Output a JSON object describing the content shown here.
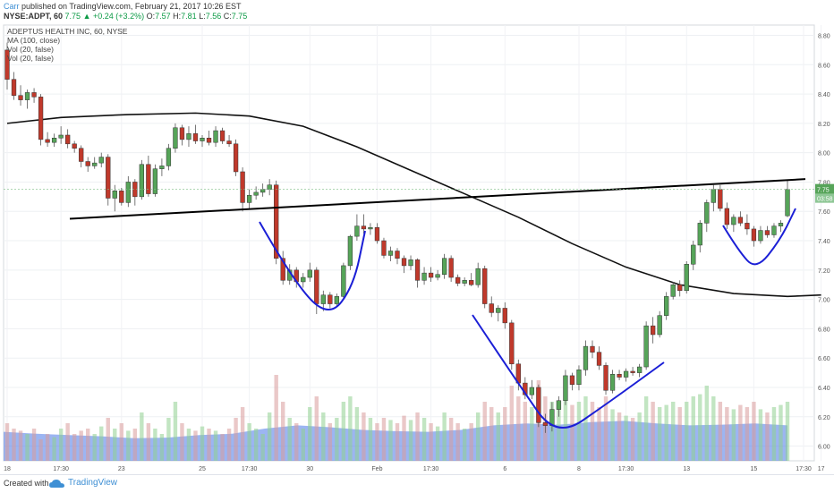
{
  "header": {
    "user": "Carr",
    "published": "published on TradingView.com, February 21, 2017 10:26 EST",
    "symbol": "NYSE:ADPT, 60",
    "last": "7.75",
    "change": "+0.24 (+3.2%)",
    "o_label": "O:",
    "o_value": "7.57",
    "h_label": "H:",
    "h_value": "7.81",
    "l_label": "L:",
    "l_value": "7.56",
    "c_label": "C:",
    "c_value": "7.75"
  },
  "panel": {
    "title": "ADEPTUS HEALTH INC, 60, NYSE",
    "indicators": [
      "MA (100, close)",
      "Vol (20, false)",
      "Vol (20, false)"
    ]
  },
  "price_scale": {
    "ticks": [
      "8.80",
      "8.60",
      "8.40",
      "8.20",
      "8.00",
      "7.80",
      "7.60",
      "7.40",
      "7.20",
      "7.00",
      "6.80",
      "6.60",
      "6.40",
      "6.20",
      "6.00"
    ],
    "current_price": "7.75",
    "countdown": "03:58"
  },
  "time_axis": {
    "labels": [
      "18",
      "17:30",
      "23",
      "25",
      "17:30",
      "30",
      "Feb",
      "17:30",
      "6",
      "8",
      "17:30",
      "13",
      "15",
      "17",
      "17:30"
    ]
  },
  "footer": {
    "created": "Created with",
    "brand": "TradingView"
  },
  "colors": {
    "up": "#56a459",
    "down": "#c0392b",
    "volume_area": "#4a78e8",
    "hand_drawn": "#1b1fd6",
    "ma_line": "#111111",
    "trendline": "#000000"
  },
  "chart_data": {
    "type": "candlestick",
    "symbol": "NYSE:ADPT",
    "interval": "60",
    "ylim": [
      5.9,
      8.87
    ],
    "candles": [
      [
        8.7,
        8.75,
        8.43,
        8.5
      ],
      [
        8.5,
        8.55,
        8.36,
        8.39
      ],
      [
        8.39,
        8.46,
        8.32,
        8.36
      ],
      [
        8.36,
        8.43,
        8.3,
        8.41
      ],
      [
        8.41,
        8.44,
        8.34,
        8.38
      ],
      [
        8.38,
        8.4,
        8.05,
        8.09
      ],
      [
        8.09,
        8.14,
        8.04,
        8.07
      ],
      [
        8.07,
        8.13,
        8.04,
        8.1
      ],
      [
        8.1,
        8.18,
        8.06,
        8.12
      ],
      [
        8.12,
        8.16,
        8.03,
        8.06
      ],
      [
        8.06,
        8.08,
        8.0,
        8.03
      ],
      [
        8.03,
        8.05,
        7.9,
        7.94
      ],
      [
        7.94,
        7.97,
        7.87,
        7.91
      ],
      [
        7.91,
        7.97,
        7.89,
        7.93
      ],
      [
        7.93,
        8.0,
        7.9,
        7.97
      ],
      [
        7.97,
        7.99,
        7.64,
        7.69
      ],
      [
        7.69,
        7.78,
        7.6,
        7.74
      ],
      [
        7.74,
        7.76,
        7.64,
        7.66
      ],
      [
        7.66,
        7.84,
        7.63,
        7.8
      ],
      [
        7.8,
        7.82,
        7.64,
        7.7
      ],
      [
        7.7,
        7.95,
        7.68,
        7.92
      ],
      [
        7.92,
        7.98,
        7.7,
        7.72
      ],
      [
        7.72,
        7.92,
        7.7,
        7.89
      ],
      [
        7.89,
        7.96,
        7.84,
        7.91
      ],
      [
        7.91,
        8.06,
        7.88,
        8.03
      ],
      [
        8.03,
        8.2,
        8.0,
        8.17
      ],
      [
        8.17,
        8.19,
        8.05,
        8.09
      ],
      [
        8.09,
        8.18,
        8.04,
        8.13
      ],
      [
        8.13,
        8.19,
        8.06,
        8.08
      ],
      [
        8.08,
        8.12,
        8.04,
        8.1
      ],
      [
        8.1,
        8.15,
        8.05,
        8.07
      ],
      [
        8.07,
        8.18,
        8.04,
        8.15
      ],
      [
        8.15,
        8.17,
        8.06,
        8.08
      ],
      [
        8.08,
        8.12,
        8.04,
        8.06
      ],
      [
        8.06,
        8.09,
        7.84,
        7.87
      ],
      [
        7.87,
        7.9,
        7.6,
        7.66
      ],
      [
        7.66,
        7.75,
        7.62,
        7.71
      ],
      [
        7.71,
        7.77,
        7.68,
        7.73
      ],
      [
        7.73,
        7.79,
        7.7,
        7.75
      ],
      [
        7.75,
        7.82,
        7.71,
        7.78
      ],
      [
        7.78,
        7.81,
        7.24,
        7.28
      ],
      [
        7.28,
        7.33,
        7.1,
        7.13
      ],
      [
        7.13,
        7.24,
        7.1,
        7.2
      ],
      [
        7.2,
        7.22,
        7.08,
        7.12
      ],
      [
        7.12,
        7.18,
        7.08,
        7.15
      ],
      [
        7.15,
        7.25,
        7.12,
        7.2
      ],
      [
        7.2,
        7.22,
        6.9,
        6.97
      ],
      [
        6.97,
        7.06,
        6.92,
        7.03
      ],
      [
        7.03,
        7.05,
        6.94,
        6.97
      ],
      [
        6.97,
        7.04,
        6.95,
        7.02
      ],
      [
        7.02,
        7.25,
        7.0,
        7.23
      ],
      [
        7.23,
        7.44,
        7.2,
        7.43
      ],
      [
        7.43,
        7.58,
        7.4,
        7.5
      ],
      [
        7.5,
        7.58,
        7.45,
        7.48
      ],
      [
        7.48,
        7.52,
        7.44,
        7.49
      ],
      [
        7.49,
        7.52,
        7.38,
        7.4
      ],
      [
        7.4,
        7.42,
        7.28,
        7.3
      ],
      [
        7.3,
        7.36,
        7.26,
        7.33
      ],
      [
        7.33,
        7.35,
        7.24,
        7.28
      ],
      [
        7.28,
        7.3,
        7.18,
        7.23
      ],
      [
        7.23,
        7.3,
        7.2,
        7.27
      ],
      [
        7.27,
        7.28,
        7.08,
        7.13
      ],
      [
        7.13,
        7.22,
        7.1,
        7.18
      ],
      [
        7.18,
        7.22,
        7.12,
        7.15
      ],
      [
        7.15,
        7.2,
        7.13,
        7.17
      ],
      [
        7.17,
        7.31,
        7.14,
        7.28
      ],
      [
        7.28,
        7.3,
        7.12,
        7.15
      ],
      [
        7.15,
        7.17,
        7.09,
        7.11
      ],
      [
        7.11,
        7.15,
        7.09,
        7.13
      ],
      [
        7.13,
        7.18,
        7.09,
        7.1
      ],
      [
        7.1,
        7.25,
        7.08,
        7.21
      ],
      [
        7.21,
        7.23,
        6.94,
        6.97
      ],
      [
        6.97,
        7.02,
        6.88,
        6.91
      ],
      [
        6.91,
        6.96,
        6.85,
        6.94
      ],
      [
        6.94,
        6.98,
        6.8,
        6.84
      ],
      [
        6.84,
        6.86,
        6.52,
        6.56
      ],
      [
        6.56,
        6.59,
        6.38,
        6.43
      ],
      [
        6.43,
        6.47,
        6.32,
        6.35
      ],
      [
        6.35,
        6.45,
        6.32,
        6.4
      ],
      [
        6.4,
        6.42,
        6.13,
        6.16
      ],
      [
        6.16,
        6.22,
        6.09,
        6.14
      ],
      [
        6.14,
        6.3,
        6.1,
        6.25
      ],
      [
        6.25,
        6.34,
        6.2,
        6.31
      ],
      [
        6.31,
        6.52,
        6.28,
        6.48
      ],
      [
        6.48,
        6.5,
        6.38,
        6.42
      ],
      [
        6.42,
        6.55,
        6.38,
        6.52
      ],
      [
        6.52,
        6.72,
        6.48,
        6.68
      ],
      [
        6.68,
        6.72,
        6.6,
        6.64
      ],
      [
        6.64,
        6.68,
        6.52,
        6.55
      ],
      [
        6.55,
        6.57,
        6.35,
        6.38
      ],
      [
        6.38,
        6.52,
        6.36,
        6.49
      ],
      [
        6.49,
        6.52,
        6.45,
        6.47
      ],
      [
        6.47,
        6.53,
        6.44,
        6.51
      ],
      [
        6.51,
        6.54,
        6.48,
        6.5
      ],
      [
        6.5,
        6.56,
        6.47,
        6.54
      ],
      [
        6.54,
        6.85,
        6.52,
        6.82
      ],
      [
        6.82,
        6.88,
        6.7,
        6.76
      ],
      [
        6.76,
        6.92,
        6.74,
        6.89
      ],
      [
        6.89,
        7.05,
        6.86,
        7.02
      ],
      [
        7.02,
        7.12,
        7.0,
        7.1
      ],
      [
        7.1,
        7.13,
        7.02,
        7.06
      ],
      [
        7.06,
        7.26,
        7.04,
        7.24
      ],
      [
        7.24,
        7.4,
        7.2,
        7.37
      ],
      [
        7.37,
        7.54,
        7.32,
        7.52
      ],
      [
        7.52,
        7.68,
        7.46,
        7.66
      ],
      [
        7.66,
        7.78,
        7.6,
        7.75
      ],
      [
        7.75,
        7.78,
        7.6,
        7.62
      ],
      [
        7.62,
        7.66,
        7.48,
        7.51
      ],
      [
        7.51,
        7.58,
        7.46,
        7.56
      ],
      [
        7.56,
        7.6,
        7.5,
        7.52
      ],
      [
        7.52,
        7.58,
        7.44,
        7.48
      ],
      [
        7.48,
        7.5,
        7.36,
        7.4
      ],
      [
        7.4,
        7.5,
        7.38,
        7.47
      ],
      [
        7.47,
        7.5,
        7.42,
        7.44
      ],
      [
        7.44,
        7.52,
        7.42,
        7.5
      ],
      [
        7.5,
        7.54,
        7.46,
        7.52
      ],
      [
        7.57,
        7.81,
        7.56,
        7.75
      ]
    ],
    "ma100": [
      [
        0,
        8.2
      ],
      [
        8,
        8.24
      ],
      [
        18,
        8.26
      ],
      [
        28,
        8.27
      ],
      [
        36,
        8.25
      ],
      [
        44,
        8.18
      ],
      [
        52,
        8.04
      ],
      [
        60,
        7.88
      ],
      [
        68,
        7.72
      ],
      [
        76,
        7.56
      ],
      [
        84,
        7.38
      ],
      [
        92,
        7.22
      ],
      [
        100,
        7.1
      ],
      [
        108,
        7.04
      ],
      [
        116,
        7.02
      ],
      [
        121,
        7.03
      ]
    ],
    "volume": [
      0.35,
      0.3,
      0.28,
      0.25,
      0.3,
      0.2,
      0.25,
      0.22,
      0.3,
      0.35,
      0.25,
      0.28,
      0.3,
      0.25,
      0.32,
      0.4,
      0.3,
      0.35,
      0.28,
      0.3,
      0.45,
      0.35,
      0.3,
      0.25,
      0.4,
      0.55,
      0.35,
      0.3,
      0.28,
      0.32,
      0.3,
      0.28,
      0.25,
      0.3,
      0.4,
      0.5,
      0.35,
      0.3,
      0.25,
      0.45,
      0.8,
      0.55,
      0.4,
      0.35,
      0.3,
      0.5,
      0.6,
      0.45,
      0.35,
      0.4,
      0.55,
      0.6,
      0.5,
      0.45,
      0.4,
      0.35,
      0.4,
      0.38,
      0.35,
      0.42,
      0.38,
      0.45,
      0.4,
      0.35,
      0.32,
      0.45,
      0.4,
      0.35,
      0.3,
      0.35,
      0.45,
      0.55,
      0.5,
      0.45,
      0.5,
      0.7,
      0.6,
      0.55,
      0.5,
      0.75,
      0.6,
      0.55,
      0.5,
      0.58,
      0.52,
      0.55,
      0.6,
      0.55,
      0.5,
      0.6,
      0.48,
      0.45,
      0.42,
      0.4,
      0.45,
      0.6,
      0.55,
      0.5,
      0.52,
      0.55,
      0.5,
      0.55,
      0.6,
      0.62,
      0.7,
      0.6,
      0.55,
      0.5,
      0.48,
      0.52,
      0.5,
      0.55,
      0.48,
      0.45,
      0.5,
      0.52,
      0.55
    ],
    "volume_area": [
      0.45,
      0.42,
      0.4,
      0.38,
      0.35,
      0.36,
      0.4,
      0.42,
      0.5,
      0.55,
      0.52,
      0.48,
      0.46,
      0.45,
      0.48,
      0.55,
      0.58,
      0.56,
      0.6,
      0.62,
      0.58,
      0.55,
      0.56,
      0.58,
      0.55
    ],
    "trendline": [
      [
        6,
        7.55
      ],
      [
        128,
        7.82
      ]
    ],
    "hand_drawn_curves": 4
  }
}
